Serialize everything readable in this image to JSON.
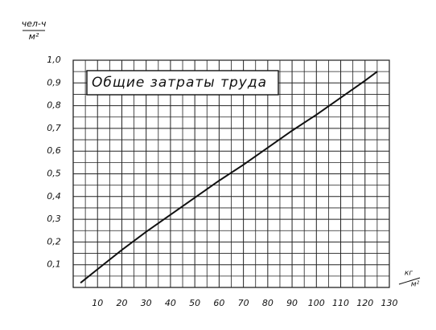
{
  "chart_data": {
    "type": "line",
    "title": "Общие затраты труда",
    "y_label_numerator": "чел-ч",
    "y_label_denominator": "м²",
    "x_label_numerator": "кг",
    "x_label_denominator": "м²",
    "x": [
      3,
      10,
      20,
      30,
      40,
      50,
      60,
      70,
      80,
      90,
      100,
      110,
      120,
      125
    ],
    "series": [
      {
        "color": "#111111",
        "values": [
          0.02,
          0.08,
          0.165,
          0.245,
          0.32,
          0.395,
          0.47,
          0.54,
          0.615,
          0.69,
          0.76,
          0.835,
          0.91,
          0.95
        ]
      }
    ],
    "xlim": [
      0,
      130
    ],
    "ylim": [
      0,
      1
    ],
    "xticks": [
      10,
      20,
      30,
      40,
      50,
      60,
      70,
      80,
      90,
      100,
      110,
      120,
      130
    ],
    "yticks": [
      {
        "value": 0.1,
        "label": "0,1"
      },
      {
        "value": 0.2,
        "label": "0,2"
      },
      {
        "value": 0.3,
        "label": "0,3"
      },
      {
        "value": 0.4,
        "label": "0,4"
      },
      {
        "value": 0.5,
        "label": "0,5"
      },
      {
        "value": 0.6,
        "label": "0,6"
      },
      {
        "value": 0.7,
        "label": "0,7"
      },
      {
        "value": 0.8,
        "label": "0,8"
      },
      {
        "value": 0.9,
        "label": "0,9"
      },
      {
        "value": 1,
        "label": "1,0"
      }
    ],
    "grid": true
  }
}
